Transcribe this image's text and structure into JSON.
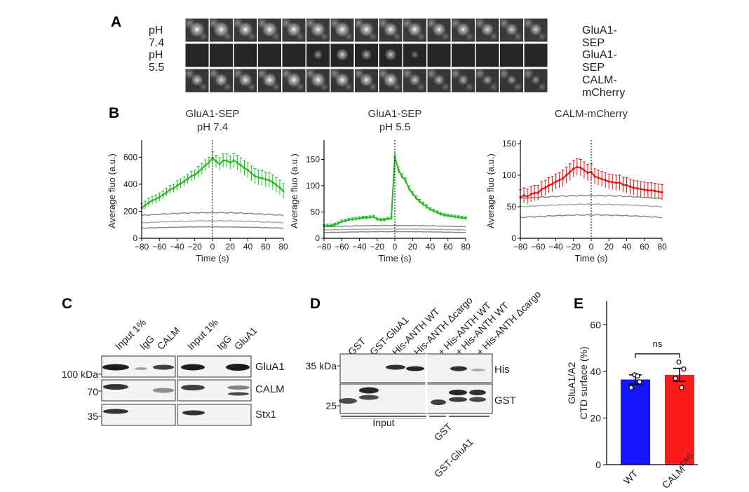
{
  "panels": {
    "A": "A",
    "B": "B",
    "C": "C",
    "D": "D",
    "E": "E"
  },
  "panel_a": {
    "rows": [
      {
        "left": "pH 7.4",
        "right": "GluA1-SEP",
        "spots": [
          0.85,
          0.9,
          0.8,
          0.85,
          0.8,
          0.8,
          0.85,
          0.8,
          0.75,
          0.75,
          0.7,
          0.7,
          0.65,
          0.6,
          0.6
        ],
        "bg": 0.45
      },
      {
        "left": "pH 5.5",
        "right": "GluA1-SEP",
        "spots": [
          0,
          0,
          0,
          0,
          0,
          0.35,
          0.6,
          0.45,
          0.55,
          0.2,
          0,
          0,
          0,
          0,
          0
        ],
        "bg": 0.12
      },
      {
        "left": "",
        "right": "CALM-mCherry",
        "spots": [
          0.6,
          0.65,
          0.7,
          0.75,
          0.8,
          0.8,
          0.75,
          0.7,
          0.8,
          0.55,
          0.5,
          0.45,
          0.4,
          0.35,
          0.3
        ],
        "bg": 0.4
      }
    ]
  },
  "chart_data": [
    {
      "type": "line",
      "title": "GluA1-SEP",
      "subtitle": "pH 7.4",
      "xlabel": "Time (s)",
      "ylabel": "Average fluo (a.u.)",
      "xlim": [
        -80,
        80
      ],
      "ylim": [
        0,
        700
      ],
      "xticks": [
        -80,
        -60,
        -40,
        -20,
        0,
        20,
        40,
        60,
        80
      ],
      "yticks": [
        0,
        200,
        400,
        600
      ],
      "color": "#22bb22",
      "x": [
        -80,
        -76,
        -72,
        -68,
        -64,
        -60,
        -56,
        -52,
        -48,
        -44,
        -40,
        -36,
        -32,
        -28,
        -24,
        -20,
        -16,
        -12,
        -8,
        -4,
        0,
        4,
        8,
        12,
        16,
        20,
        24,
        28,
        32,
        36,
        40,
        44,
        48,
        52,
        56,
        60,
        64,
        68,
        72,
        76,
        80
      ],
      "y": [
        225,
        245,
        265,
        280,
        290,
        305,
        320,
        340,
        360,
        370,
        390,
        405,
        420,
        440,
        460,
        470,
        490,
        515,
        540,
        560,
        595,
        570,
        550,
        575,
        575,
        560,
        575,
        560,
        540,
        520,
        505,
        480,
        460,
        450,
        445,
        435,
        430,
        415,
        395,
        375,
        350
      ],
      "err": [
        30,
        30,
        30,
        30,
        30,
        30,
        30,
        30,
        30,
        30,
        35,
        35,
        35,
        35,
        35,
        35,
        40,
        40,
        40,
        40,
        45,
        45,
        45,
        50,
        50,
        50,
        55,
        55,
        55,
        55,
        55,
        55,
        55,
        55,
        55,
        55,
        55,
        55,
        55,
        55,
        55
      ],
      "controls": [
        {
          "y0": 170,
          "amp": 25,
          "color": "#8a8a8a"
        },
        {
          "y0": 115,
          "amp": 18,
          "color": "#a8a8a8"
        },
        {
          "y0": 75,
          "amp": 12,
          "color": "#8a8a8a"
        }
      ]
    },
    {
      "type": "line",
      "title": "GluA1-SEP",
      "subtitle": "pH 5.5",
      "xlabel": "Time (s)",
      "ylabel": "Average fluo (a.u.)",
      "xlim": [
        -80,
        80
      ],
      "ylim": [
        0,
        180
      ],
      "xticks": [
        -80,
        -60,
        -40,
        -20,
        0,
        20,
        40,
        60,
        80
      ],
      "yticks": [
        0,
        50,
        100,
        150
      ],
      "color": "#22bb22",
      "x": [
        -80,
        -76,
        -72,
        -68,
        -64,
        -60,
        -56,
        -52,
        -48,
        -44,
        -40,
        -36,
        -32,
        -28,
        -24,
        -20,
        -16,
        -12,
        -8,
        -4,
        0,
        4,
        8,
        12,
        16,
        20,
        24,
        28,
        32,
        36,
        40,
        44,
        48,
        52,
        56,
        60,
        64,
        68,
        72,
        76,
        80
      ],
      "y": [
        23,
        24,
        24,
        26,
        28,
        32,
        33,
        35,
        36,
        37,
        38,
        39,
        39,
        40,
        41,
        36,
        35,
        35,
        37,
        38,
        155,
        130,
        118,
        110,
        95,
        85,
        77,
        70,
        65,
        60,
        55,
        52,
        49,
        46,
        44,
        43,
        42,
        41,
        40,
        39,
        38
      ],
      "err": [
        3,
        3,
        3,
        3,
        3,
        3,
        3,
        3,
        3,
        3,
        3,
        3,
        3,
        3,
        3,
        3,
        3,
        3,
        3,
        3,
        6,
        6,
        5,
        5,
        5,
        4,
        4,
        4,
        4,
        4,
        3,
        3,
        3,
        3,
        3,
        3,
        3,
        3,
        3,
        3,
        3
      ],
      "controls": [
        {
          "y0": 22,
          "amp": 3,
          "color": "#8a8a8a"
        },
        {
          "y0": 16,
          "amp": 2,
          "color": "#a8a8a8"
        },
        {
          "y0": 11,
          "amp": 2,
          "color": "#8a8a8a"
        }
      ]
    },
    {
      "type": "line",
      "title": "CALM-mCherry",
      "subtitle": "",
      "xlabel": "Time (s)",
      "ylabel": "Average fluo (a.u.)",
      "xlim": [
        -80,
        80
      ],
      "ylim": [
        0,
        150
      ],
      "xticks": [
        -80,
        -60,
        -40,
        -20,
        0,
        20,
        40,
        60,
        80
      ],
      "yticks": [
        0,
        50,
        100,
        150
      ],
      "color": "#ee1111",
      "x": [
        -80,
        -76,
        -72,
        -68,
        -64,
        -60,
        -56,
        -52,
        -48,
        -44,
        -40,
        -36,
        -32,
        -28,
        -24,
        -20,
        -16,
        -12,
        -8,
        -4,
        0,
        4,
        8,
        12,
        16,
        20,
        24,
        28,
        32,
        36,
        40,
        44,
        48,
        52,
        56,
        60,
        64,
        68,
        72,
        76,
        80
      ],
      "y": [
        65,
        68,
        66,
        70,
        72,
        72,
        78,
        80,
        84,
        86,
        90,
        92,
        95,
        100,
        105,
        110,
        113,
        112,
        108,
        104,
        105,
        98,
        96,
        94,
        92,
        90,
        89,
        88,
        88,
        85,
        84,
        82,
        80,
        79,
        78,
        77,
        76,
        76,
        75,
        74,
        73
      ],
      "err": [
        12,
        12,
        12,
        12,
        12,
        12,
        12,
        12,
        12,
        12,
        12,
        12,
        13,
        13,
        13,
        13,
        13,
        13,
        13,
        13,
        13,
        12,
        12,
        12,
        12,
        12,
        12,
        12,
        12,
        12,
        12,
        12,
        12,
        12,
        12,
        12,
        12,
        12,
        12,
        12,
        12
      ],
      "controls": [
        {
          "y0": 63,
          "amp": 6,
          "color": "#8a8a8a"
        },
        {
          "y0": 50,
          "amp": 5,
          "color": "#a8a8a8"
        },
        {
          "y0": 33,
          "amp": 5,
          "color": "#8a8a8a"
        }
      ]
    },
    {
      "type": "bar",
      "categories": [
        "WT",
        "CALM^CAG"
      ],
      "values": [
        36.5,
        38.5
      ],
      "err": [
        2.0,
        2.8
      ],
      "points": [
        [
          38.5,
          35.5,
          33,
          38
        ],
        [
          44,
          41,
          37,
          33
        ]
      ],
      "colors": [
        "#1515ff",
        "#ff1a1a"
      ],
      "ylabel": "GluA1/A2 CTD surface (%)",
      "ylim": [
        0,
        70
      ],
      "yticks": [
        0,
        20,
        40,
        60
      ],
      "significance": "ns"
    }
  ],
  "panel_c": {
    "lanes": [
      "Input 1%",
      "IgG",
      "CALM",
      "Input 1%",
      "IgG",
      "GluA1"
    ],
    "left_markers": [
      "100 kDa",
      "70",
      "35"
    ],
    "right_labels": [
      "GluA1",
      "CALM",
      "Stx1"
    ]
  },
  "panel_d": {
    "lanes": [
      "GST",
      "GST-GluA1",
      "His-ANTH WT",
      "His-ANTH Δcargo",
      "+ His-ANTH WT",
      "+ His-ANTH WT",
      "+ His-ANTH Δcargo"
    ],
    "left_markers": [
      "35 kDa",
      "25"
    ],
    "right_labels": [
      "His",
      "GST"
    ],
    "bottom_groups": [
      "Input",
      "GST",
      "GST-GluA1"
    ]
  },
  "panel_e": {
    "ylabel_line1": "GluA1/A2",
    "ylabel_line2": "CTD surface (%)",
    "cat1": "WT",
    "cat2_main": "CALM",
    "cat2_sup": "CAG",
    "sig": "ns"
  }
}
